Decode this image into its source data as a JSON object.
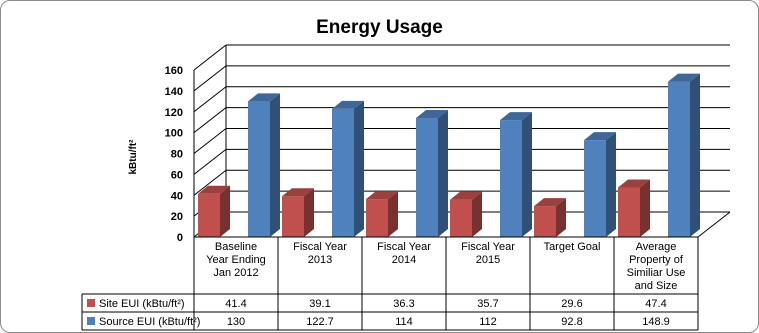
{
  "chart_data": {
    "type": "bar",
    "title": "Energy Usage",
    "ylabel": "kBtu/ft²",
    "ylim": [
      0,
      160
    ],
    "yticks": [
      "0",
      "20",
      "40",
      "60",
      "80",
      "100",
      "120",
      "140",
      "160"
    ],
    "categories": [
      "Baseline Year Ending Jan 2012",
      "Fiscal Year 2013",
      "Fiscal Year 2014",
      "Fiscal Year 2015",
      "Target Goal",
      "Average Property of Similiar Use and Size"
    ],
    "category_lines": [
      [
        "Baseline",
        "Year Ending",
        "Jan 2012"
      ],
      [
        "Fiscal Year",
        "2013"
      ],
      [
        "Fiscal Year",
        "2014"
      ],
      [
        "Fiscal Year",
        "2015"
      ],
      [
        "Target Goal"
      ],
      [
        "Average",
        "Property of",
        "Similiar Use",
        "and Size"
      ]
    ],
    "series": [
      {
        "name": "Site EUI (kBtu/ft²)",
        "color": "#c0504d",
        "values": [
          41.4,
          39.1,
          36.3,
          35.7,
          29.6,
          47.4
        ],
        "labels": [
          "41.4",
          "39.1",
          "36.3",
          "35.7",
          "29.6",
          "47.4"
        ]
      },
      {
        "name": "Source EUI (kBtu/ft²)",
        "color": "#4f81bd",
        "values": [
          130,
          122.7,
          114,
          112,
          92.8,
          148.9
        ],
        "labels": [
          "130",
          "122.7",
          "114",
          "112",
          "92.8",
          "148.9"
        ]
      }
    ],
    "grid": true,
    "legend": "data table"
  }
}
